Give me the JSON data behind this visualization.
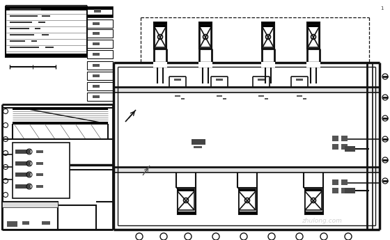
{
  "bg_color": "#ffffff",
  "lc": "#111111",
  "fig_width": 5.6,
  "fig_height": 3.45,
  "dpi": 100,
  "watermark": "zhulong.com"
}
